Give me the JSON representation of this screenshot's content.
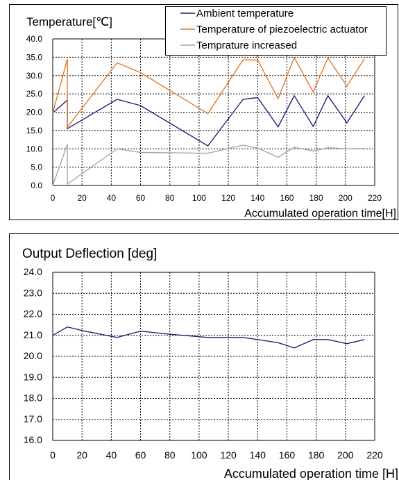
{
  "chart_data": [
    {
      "type": "line",
      "title": "Temperature[℃]",
      "xlabel": "Accumulated operation time[H]",
      "ylabel": "",
      "xlim": [
        0,
        220
      ],
      "ylim": [
        0,
        40
      ],
      "x_ticks": [
        "0",
        "20",
        "40",
        "60",
        "80",
        "100",
        "120",
        "140",
        "160",
        "180",
        "200",
        "220"
      ],
      "y_ticks": [
        "0.0",
        "5.0",
        "10.0",
        "15.0",
        "20.0",
        "25.0",
        "30.0",
        "35.0",
        "40.0"
      ],
      "grid": true,
      "legend_position": "top-right",
      "series": [
        {
          "name": "Ambient temperature",
          "color": "#1f1f7a",
          "x": [
            0,
            10,
            10,
            44,
            60,
            106,
            130,
            140,
            154,
            165,
            178,
            188,
            201,
            213
          ],
          "y": [
            19.8,
            23.3,
            15.5,
            23.5,
            21.8,
            10.8,
            23.5,
            24.0,
            16.0,
            24.5,
            16.1,
            24.5,
            17.1,
            24.5
          ]
        },
        {
          "name": "Temperature of piezoelectric actuator",
          "color": "#e2782a",
          "x": [
            0,
            10,
            10,
            44,
            60,
            106,
            130,
            140,
            154,
            165,
            178,
            188,
            201,
            213
          ],
          "y": [
            19.8,
            34.5,
            15.9,
            33.5,
            30.8,
            19.6,
            34.3,
            34.2,
            23.7,
            34.9,
            25.5,
            34.8,
            27.1,
            34.6
          ]
        },
        {
          "name": "Temprature increased",
          "color": "#a6a6a6",
          "x": [
            0,
            10,
            10,
            44,
            60,
            106,
            130,
            140,
            154,
            165,
            178,
            188,
            201,
            213
          ],
          "y": [
            0.0,
            11.2,
            0.4,
            10.0,
            9.0,
            8.8,
            11.0,
            10.2,
            7.7,
            10.4,
            9.4,
            10.3,
            10.0,
            10.1
          ]
        }
      ]
    },
    {
      "type": "line",
      "title": "Output Deflection [deg]",
      "xlabel": "Accumulated operation time [H]",
      "ylabel": "",
      "xlim": [
        0,
        220
      ],
      "ylim": [
        16,
        24
      ],
      "x_ticks": [
        "0",
        "20",
        "40",
        "60",
        "80",
        "100",
        "120",
        "140",
        "160",
        "180",
        "200",
        "220"
      ],
      "y_ticks": [
        "16.0",
        "17.0",
        "18.0",
        "19.0",
        "20.0",
        "21.0",
        "22.0",
        "23.0",
        "24.0"
      ],
      "grid": true,
      "series": [
        {
          "color": "#1f1f7a",
          "x": [
            0,
            10,
            22,
            44,
            60,
            80,
            106,
            130,
            140,
            154,
            165,
            178,
            188,
            201,
            213
          ],
          "y": [
            21.0,
            21.4,
            21.2,
            20.9,
            21.2,
            21.05,
            20.9,
            20.9,
            20.8,
            20.65,
            20.4,
            20.8,
            20.8,
            20.6,
            20.8
          ]
        }
      ]
    }
  ]
}
